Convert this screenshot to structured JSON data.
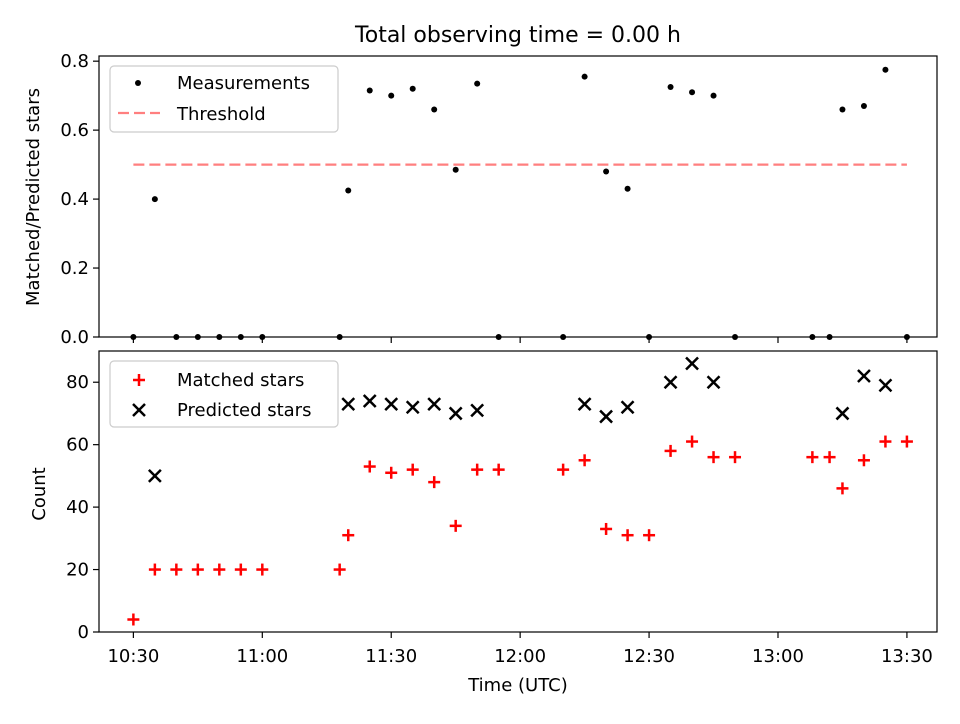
{
  "chart_data": [
    {
      "type": "scatter",
      "title": "Total observing time = 0.00 h",
      "ylabel": "Matched/Predicted stars",
      "ylim": [
        0,
        0.815
      ],
      "yticks": [
        0.0,
        0.2,
        0.4,
        0.6,
        0.8
      ],
      "ytick_labels": [
        "0.0",
        "0.2",
        "0.4",
        "0.6",
        "0.8"
      ],
      "xlim": [
        "10:22",
        "13:37"
      ],
      "legend": {
        "placement": "top-left",
        "entries": [
          "Measurements",
          "Threshold"
        ]
      },
      "threshold": {
        "name": "Threshold",
        "value": 0.5,
        "x_start": "10:30",
        "x_end": "13:30",
        "color": "#ff7f7f"
      },
      "series": [
        {
          "name": "Measurements",
          "color": "#000000",
          "x": [
            "10:30",
            "10:35",
            "10:40",
            "10:45",
            "10:50",
            "10:55",
            "11:00",
            "11:18",
            "11:20",
            "11:25",
            "11:30",
            "11:35",
            "11:40",
            "11:45",
            "11:50",
            "11:55",
            "12:10",
            "12:15",
            "12:20",
            "12:25",
            "12:30",
            "12:35",
            "12:40",
            "12:45",
            "12:50",
            "13:08",
            "13:12",
            "13:15",
            "13:20",
            "13:25",
            "13:30"
          ],
          "y": [
            0.0,
            0.4,
            0.0,
            0.0,
            0.0,
            0.0,
            0.0,
            0.0,
            0.425,
            0.715,
            0.7,
            0.72,
            0.66,
            0.485,
            0.735,
            0.0,
            0.0,
            0.755,
            0.48,
            0.43,
            0.0,
            0.725,
            0.71,
            0.7,
            0.0,
            0.0,
            0.0,
            0.66,
            0.67,
            0.775,
            0.0
          ]
        }
      ]
    },
    {
      "type": "scatter",
      "xlabel": "Time (UTC)",
      "ylabel": "Count",
      "ylim": [
        0,
        90
      ],
      "yticks": [
        0,
        20,
        40,
        60,
        80
      ],
      "ytick_labels": [
        "0",
        "20",
        "40",
        "60",
        "80"
      ],
      "xlim": [
        "10:22",
        "13:37"
      ],
      "xticks": [
        "10:30",
        "11:00",
        "11:30",
        "12:00",
        "12:30",
        "13:00",
        "13:30"
      ],
      "xtick_labels": [
        "10:30",
        "11:00",
        "11:30",
        "12:00",
        "12:30",
        "13:00",
        "13:30"
      ],
      "legend": {
        "placement": "top-left",
        "entries": [
          "Matched stars",
          "Predicted stars"
        ]
      },
      "series": [
        {
          "name": "Matched stars",
          "marker": "+",
          "color": "#ff0000",
          "x": [
            "10:30",
            "10:35",
            "10:40",
            "10:45",
            "10:50",
            "10:55",
            "11:00",
            "11:18",
            "11:20",
            "11:25",
            "11:30",
            "11:35",
            "11:40",
            "11:45",
            "11:50",
            "11:55",
            "12:10",
            "12:15",
            "12:20",
            "12:25",
            "12:30",
            "12:35",
            "12:40",
            "12:45",
            "12:50",
            "13:08",
            "13:12",
            "13:15",
            "13:20",
            "13:25",
            "13:30"
          ],
          "y": [
            4,
            20,
            20,
            20,
            20,
            20,
            20,
            20,
            31,
            53,
            51,
            52,
            48,
            34,
            52,
            52,
            52,
            55,
            33,
            31,
            31,
            58,
            61,
            56,
            56,
            56,
            56,
            46,
            55,
            61,
            61
          ]
        },
        {
          "name": "Predicted stars",
          "marker": "x",
          "color": "#000000",
          "x": [
            "10:35",
            "11:20",
            "11:25",
            "11:30",
            "11:35",
            "11:40",
            "11:45",
            "11:50",
            "12:15",
            "12:20",
            "12:25",
            "12:35",
            "12:40",
            "12:45",
            "13:15",
            "13:20",
            "13:25"
          ],
          "y": [
            50,
            73,
            74,
            73,
            72,
            73,
            70,
            71,
            73,
            69,
            72,
            80,
            86,
            80,
            70,
            82,
            79
          ]
        }
      ]
    }
  ]
}
